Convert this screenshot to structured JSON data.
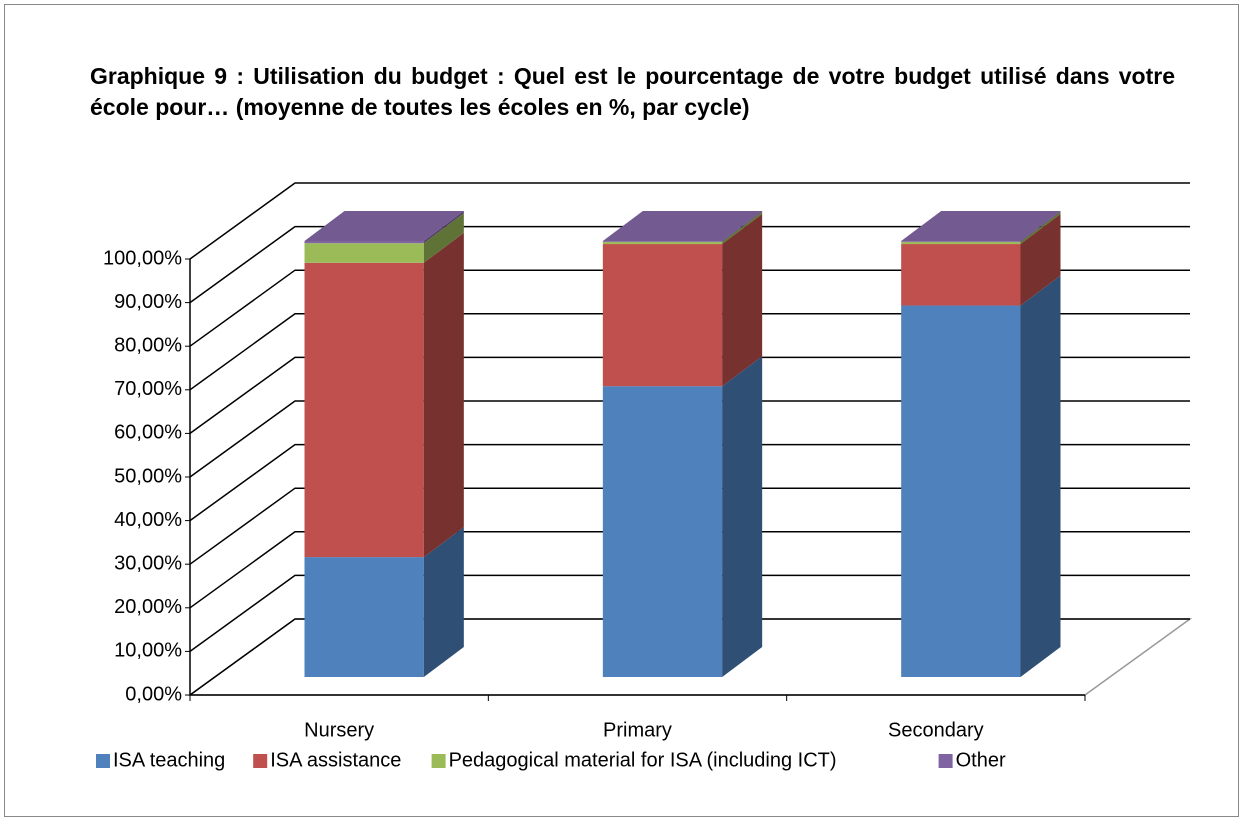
{
  "chart_data": {
    "type": "bar3d_stacked",
    "title": "Graphique 9 : Utilisation du budget : Quel est le pourcentage de votre budget utilisé dans votre école pour… (moyenne de toutes les écoles en %, par cycle)",
    "categories": [
      "Nursery",
      "Primary",
      "Secondary"
    ],
    "series": [
      {
        "name": "ISA teaching",
        "color": "#4f81bd",
        "values": [
          27.5,
          66.7,
          85.2
        ]
      },
      {
        "name": "ISA assistance",
        "color": "#c0504d",
        "values": [
          67.5,
          32.6,
          14.1
        ]
      },
      {
        "name": "Pedagogical material  for ISA (including ICT)",
        "color": "#9bbb59",
        "values": [
          4.5,
          0.5,
          0.5
        ]
      },
      {
        "name": "Other",
        "color": "#8064a2",
        "values": [
          0.5,
          0.2,
          0.2
        ]
      }
    ],
    "ylim": [
      0,
      100
    ],
    "yticks": [
      {
        "value": 0,
        "label": "0,00%"
      },
      {
        "value": 10,
        "label": "10,00%"
      },
      {
        "value": 20,
        "label": "20,00%"
      },
      {
        "value": 30,
        "label": "30,00%"
      },
      {
        "value": 40,
        "label": "40,00%"
      },
      {
        "value": 50,
        "label": "50,00%"
      },
      {
        "value": 60,
        "label": "60,00%"
      },
      {
        "value": 70,
        "label": "70,00%"
      },
      {
        "value": 80,
        "label": "80,00%"
      },
      {
        "value": 90,
        "label": "90,00%"
      },
      {
        "value": 100,
        "label": "100,00%"
      }
    ],
    "grid": true,
    "legend": "bottom"
  }
}
